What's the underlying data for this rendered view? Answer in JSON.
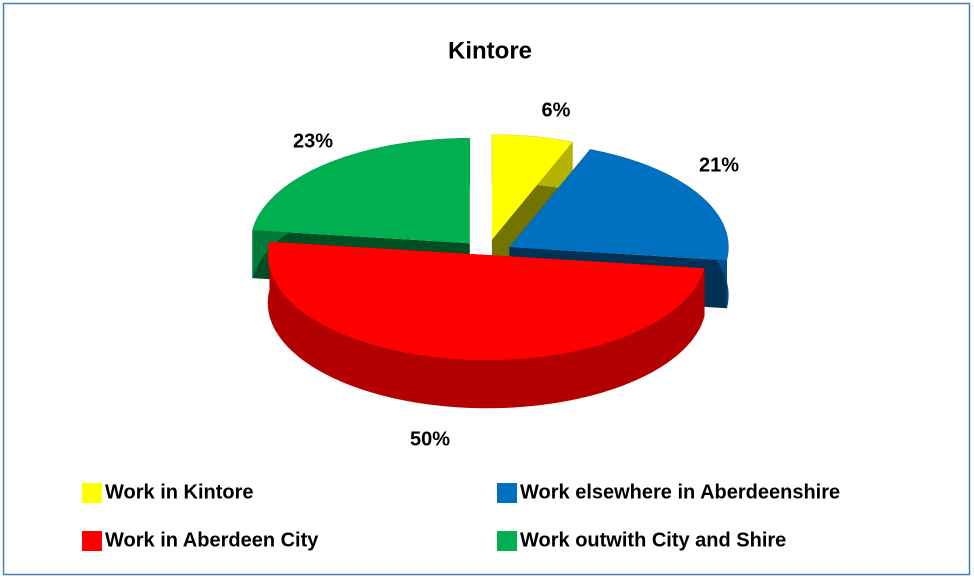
{
  "chart_data": {
    "type": "pie",
    "title": "Kintore",
    "categories": [
      "Work in Kintore",
      "Work elsewhere in Aberdeenshire",
      "Work in Aberdeen City",
      "Work outwith City and Shire"
    ],
    "values": [
      6,
      21,
      50,
      23
    ],
    "value_labels": [
      "6%",
      "21%",
      "50%",
      "23%"
    ],
    "colors": [
      "#ffff00",
      "#0070c0",
      "#ff0000",
      "#00b050"
    ],
    "legend": "bottom"
  }
}
